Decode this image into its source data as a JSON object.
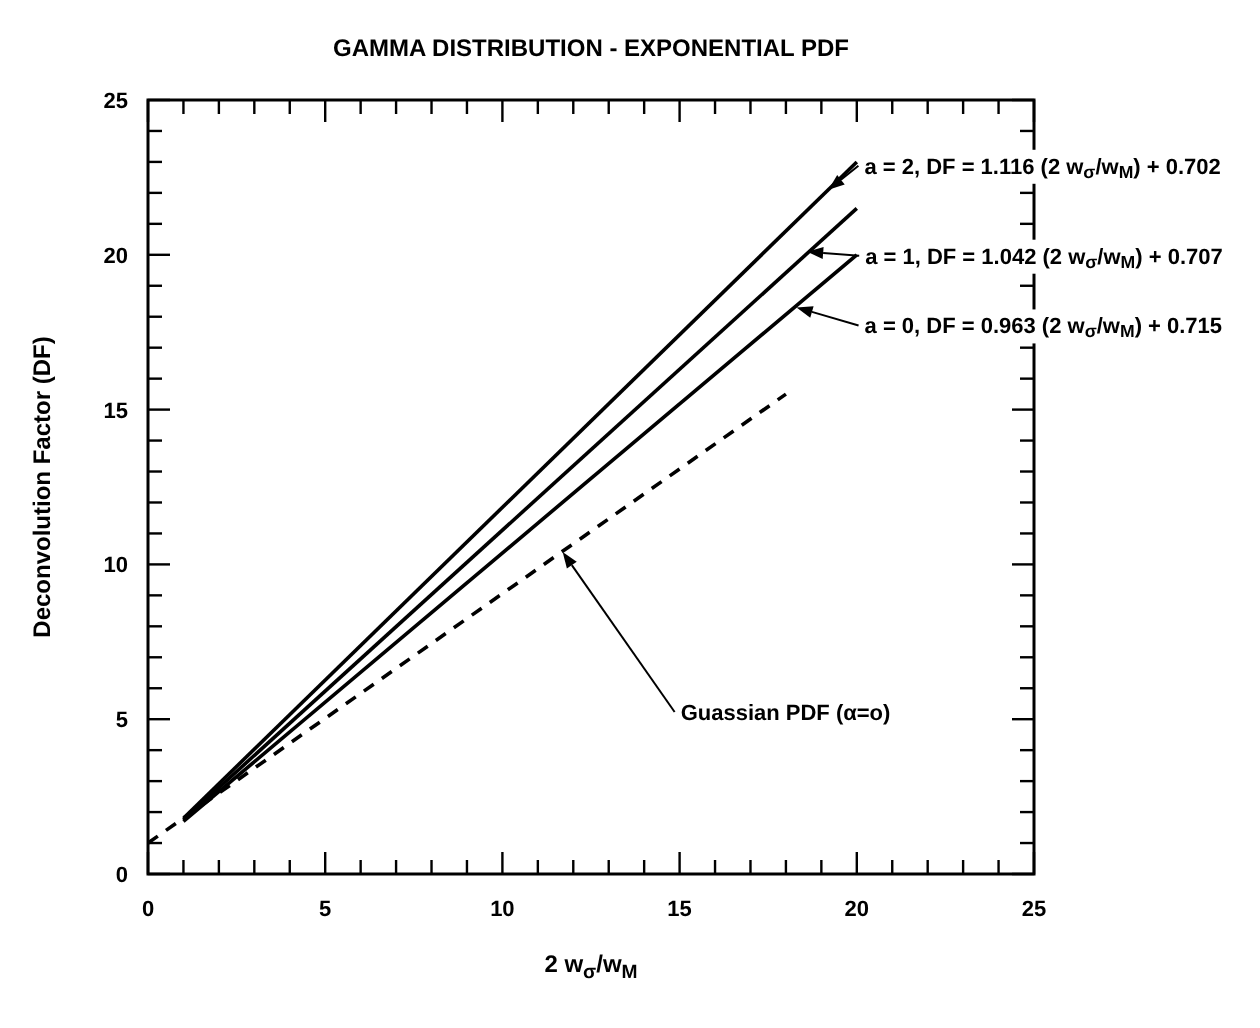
{
  "chart_data": {
    "type": "line",
    "title": "GAMMA DISTRIBUTION - EXPONENTIAL PDF",
    "xlabel": "2 w$_{σ}$/w$_{M}$",
    "ylabel": "Deconvolution Factor (DF)",
    "xlim": [
      0,
      25
    ],
    "ylim": [
      0,
      25
    ],
    "xticks": [
      0,
      {
        "value": 1,
        "label": null
      },
      {
        "value": 2,
        "label": null
      },
      {
        "value": 3,
        "label": null
      },
      {
        "value": 4,
        "label": null
      },
      5,
      {
        "value": 6,
        "label": null
      },
      {
        "value": 7,
        "label": null
      },
      {
        "value": 8,
        "label": null
      },
      {
        "value": 9,
        "label": null
      },
      10,
      {
        "value": 11,
        "label": null
      },
      {
        "value": 12,
        "label": null
      },
      {
        "value": 13,
        "label": null
      },
      {
        "value": 14,
        "label": null
      },
      15,
      {
        "value": 16,
        "label": null
      },
      {
        "value": 17,
        "label": null
      },
      {
        "value": 18,
        "label": null
      },
      {
        "value": 19,
        "label": null
      },
      20,
      {
        "value": 21,
        "label": null
      },
      {
        "value": 22,
        "label": null
      },
      {
        "value": 23,
        "label": null
      },
      {
        "value": 24,
        "label": null
      },
      25
    ],
    "yticks": [
      0,
      {
        "value": 1,
        "label": null
      },
      {
        "value": 2,
        "label": null
      },
      {
        "value": 3,
        "label": null
      },
      {
        "value": 4,
        "label": null
      },
      5,
      {
        "value": 6,
        "label": null
      },
      {
        "value": 7,
        "label": null
      },
      {
        "value": 8,
        "label": null
      },
      {
        "value": 9,
        "label": null
      },
      10,
      {
        "value": 11,
        "label": null
      },
      {
        "value": 12,
        "label": null
      },
      {
        "value": 13,
        "label": null
      },
      {
        "value": 14,
        "label": null
      },
      15,
      {
        "value": 16,
        "label": null
      },
      {
        "value": 17,
        "label": null
      },
      {
        "value": 18,
        "label": null
      },
      {
        "value": 19,
        "label": null
      },
      20,
      {
        "value": 21,
        "label": null
      },
      {
        "value": 22,
        "label": null
      },
      {
        "value": 23,
        "label": null
      },
      {
        "value": 24,
        "label": null
      },
      25
    ],
    "series": [
      {
        "color": "#000000",
        "x": [
          1,
          20
        ],
        "values": [
          1.8,
          23.0
        ],
        "line_style": "solid"
      },
      {
        "color": "#000000",
        "x": [
          1,
          20
        ],
        "values": [
          1.75,
          21.5
        ],
        "line_style": "solid"
      },
      {
        "color": "#000000",
        "x": [
          1,
          20
        ],
        "values": [
          1.7,
          20.0
        ],
        "line_style": "solid"
      },
      {
        "color": "#000000",
        "x": [
          0,
          18
        ],
        "values": [
          1.0,
          15.5
        ],
        "line_style": "dashed"
      }
    ],
    "annotations": [
      {
        "text": "a = 2, DF = 1.116 (2 w$_{σ}$/w$_{M}$) + 0.702",
        "x": 19.2,
        "y": 22.1
      },
      {
        "text": "a = 1, DF = 1.042 (2 w$_{σ}$/w$_{M}$) + 0.707",
        "x": 18.6,
        "y": 20.1
      },
      {
        "text": "a = 0, DF = 0.963 (2 w$_{σ}$/w$_{M}$) + 0.715",
        "x": 18.3,
        "y": 18.3
      },
      {
        "text": "Guassian PDF (α=o)",
        "x": 11.7,
        "y": 10.4
      }
    ]
  }
}
